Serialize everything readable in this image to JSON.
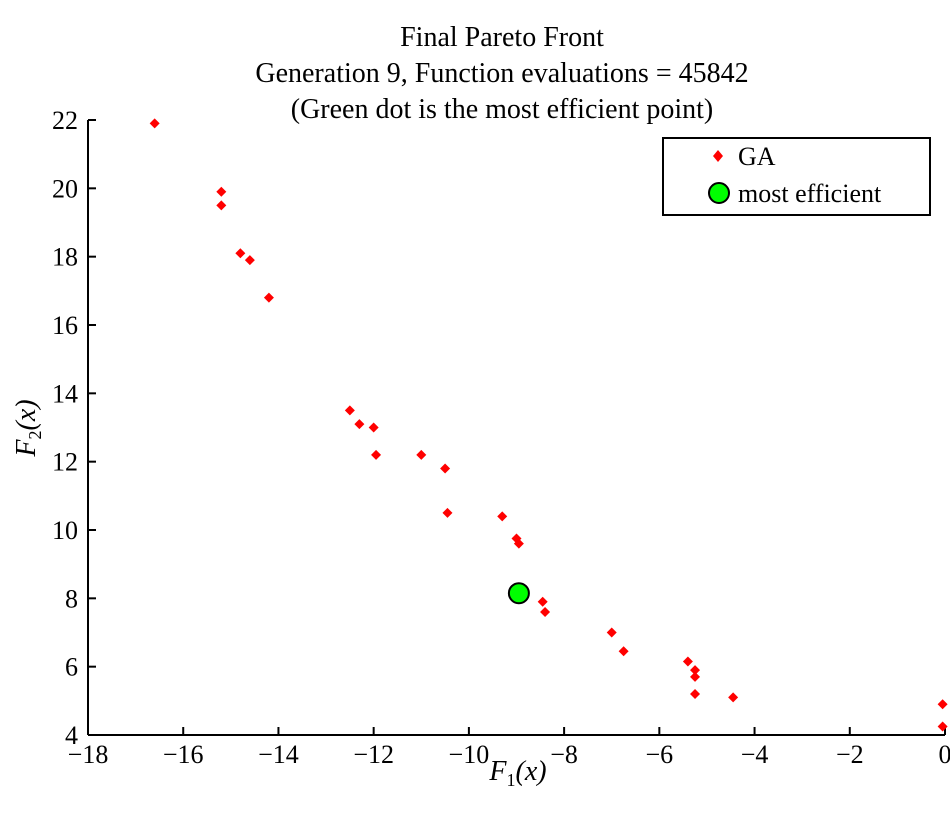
{
  "chart_data": {
    "type": "scatter",
    "title": [
      "Final Pareto Front",
      "Generation 9, Function evaluations = 45842",
      "(Green dot is the most efficient point)"
    ],
    "xlabel": {
      "main": "F",
      "sub": "1",
      "rest": "(x)"
    },
    "ylabel": {
      "main": "F",
      "sub": "2",
      "rest": "(x)"
    },
    "xlim": [
      -18,
      0
    ],
    "ylim": [
      4,
      22
    ],
    "xticks": [
      -18,
      -16,
      -14,
      -12,
      -10,
      -8,
      -6,
      -4,
      -2,
      0
    ],
    "yticks": [
      4,
      6,
      8,
      10,
      12,
      14,
      16,
      18,
      20,
      22
    ],
    "xtick_labels": [
      "−18",
      "−16",
      "−14",
      "−12",
      "−10",
      "−8",
      "−6",
      "−4",
      "−2",
      "0"
    ],
    "ytick_labels": [
      "4",
      "6",
      "8",
      "10",
      "12",
      "14",
      "16",
      "18",
      "20",
      "22"
    ],
    "legend_position": "top-right",
    "series": [
      {
        "name": "GA",
        "color": "#ff0000",
        "marker": "diamond",
        "points": [
          [
            -16.6,
            21.9
          ],
          [
            -15.2,
            19.9
          ],
          [
            -15.2,
            19.5
          ],
          [
            -14.8,
            18.1
          ],
          [
            -14.6,
            17.9
          ],
          [
            -14.2,
            16.8
          ],
          [
            -12.5,
            13.5
          ],
          [
            -12.3,
            13.1
          ],
          [
            -12.0,
            13.0
          ],
          [
            -11.95,
            12.2
          ],
          [
            -11.0,
            12.2
          ],
          [
            -10.5,
            11.8
          ],
          [
            -10.45,
            10.5
          ],
          [
            -9.3,
            10.4
          ],
          [
            -9.0,
            9.75
          ],
          [
            -8.95,
            9.6
          ],
          [
            -8.45,
            7.9
          ],
          [
            -8.4,
            7.6
          ],
          [
            -7.0,
            7.0
          ],
          [
            -6.75,
            6.45
          ],
          [
            -5.4,
            6.15
          ],
          [
            -5.25,
            5.9
          ],
          [
            -5.25,
            5.7
          ],
          [
            -5.25,
            5.2
          ],
          [
            -4.45,
            5.1
          ],
          [
            -0.05,
            4.9
          ],
          [
            -0.05,
            4.25
          ]
        ]
      },
      {
        "name": "most efficient",
        "color": "#00ff00",
        "marker": "circle",
        "points": [
          [
            -8.95,
            8.15
          ]
        ]
      }
    ]
  }
}
